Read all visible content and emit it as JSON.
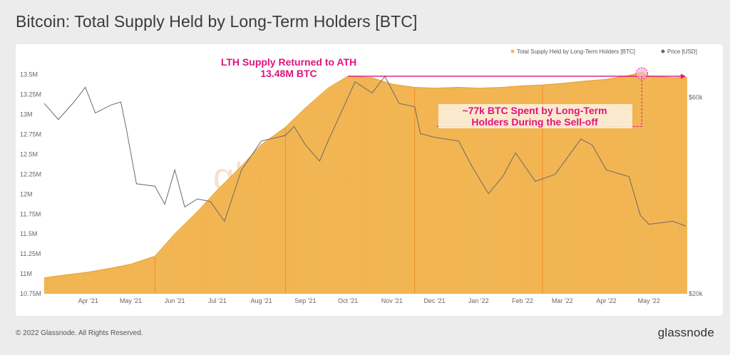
{
  "title": "Bitcoin: Total Supply Held by Long-Term Holders [BTC]",
  "footer": {
    "copyright": "© 2022 Glassnode. All Rights Reserved.",
    "logo": "glassnode"
  },
  "watermark": "glassnode",
  "colors": {
    "supply": "#f4b754",
    "supply_stroke": "#e8a53a",
    "price": "#6a6a6a",
    "annotation": "#e0137d",
    "vline": "#f28c28"
  },
  "chart_data": {
    "type": "area",
    "legend": [
      {
        "label": "Total Supply Held by Long-Term Holders [BTC]",
        "color": "#f4b754"
      },
      {
        "label": "Price [USD]",
        "color": "#6a6a6a"
      }
    ],
    "legend_position": "top-right",
    "x_tick_labels": [
      "Apr '21",
      "May '21",
      "Jun '21",
      "Jul '21",
      "Aug '21",
      "Sep '21",
      "Oct '21",
      "Nov '21",
      "Dec '21",
      "Jan '22",
      "Feb '22",
      "Mar '22",
      "Apr '22",
      "May '22"
    ],
    "x_range": [
      "2021-03-15",
      "2022-06-10"
    ],
    "y_left": {
      "ticks": [
        10750000,
        11000000,
        11250000,
        11500000,
        11750000,
        12000000,
        12250000,
        12500000,
        12750000,
        13000000,
        13250000,
        13500000
      ],
      "tick_labels": [
        "10.75M",
        "11M",
        "11.25M",
        "11.5M",
        "11.75M",
        "12M",
        "12.25M",
        "12.5M",
        "12.75M",
        "13M",
        "13.25M",
        "13.5M"
      ],
      "range": [
        10750000,
        13560000
      ]
    },
    "y_right": {
      "scale": "log",
      "ticks": [
        20000,
        60000
      ],
      "tick_labels": [
        "$20k",
        "$60k"
      ],
      "range": [
        20000,
        70000
      ]
    },
    "series": [
      {
        "name": "Total Supply Held by Long-Term Holders [BTC]",
        "axis": "left",
        "points": [
          [
            "2021-03-15",
            10950000
          ],
          [
            "2021-04-01",
            10990000
          ],
          [
            "2021-04-15",
            11020000
          ],
          [
            "2021-05-01",
            11070000
          ],
          [
            "2021-05-15",
            11120000
          ],
          [
            "2021-06-01",
            11220000
          ],
          [
            "2021-06-15",
            11500000
          ],
          [
            "2021-07-01",
            11780000
          ],
          [
            "2021-07-15",
            12050000
          ],
          [
            "2021-08-01",
            12350000
          ],
          [
            "2021-08-15",
            12620000
          ],
          [
            "2021-09-01",
            12840000
          ],
          [
            "2021-09-15",
            13080000
          ],
          [
            "2021-10-01",
            13330000
          ],
          [
            "2021-10-15",
            13480000
          ],
          [
            "2021-11-01",
            13460000
          ],
          [
            "2021-11-15",
            13380000
          ],
          [
            "2021-12-01",
            13340000
          ],
          [
            "2021-12-15",
            13330000
          ],
          [
            "2022-01-01",
            13340000
          ],
          [
            "2022-01-15",
            13330000
          ],
          [
            "2022-02-01",
            13340000
          ],
          [
            "2022-02-15",
            13360000
          ],
          [
            "2022-03-01",
            13370000
          ],
          [
            "2022-03-15",
            13390000
          ],
          [
            "2022-04-01",
            13420000
          ],
          [
            "2022-04-15",
            13440000
          ],
          [
            "2022-05-01",
            13490000
          ],
          [
            "2022-05-10",
            13530000
          ],
          [
            "2022-05-15",
            13480000
          ],
          [
            "2022-06-01",
            13460000
          ],
          [
            "2022-06-10",
            13470000
          ]
        ]
      },
      {
        "name": "Price [USD]",
        "axis": "right",
        "points": [
          [
            "2021-03-15",
            58000
          ],
          [
            "2021-03-25",
            53000
          ],
          [
            "2021-04-05",
            58500
          ],
          [
            "2021-04-13",
            63500
          ],
          [
            "2021-04-20",
            55000
          ],
          [
            "2021-05-01",
            57500
          ],
          [
            "2021-05-08",
            58500
          ],
          [
            "2021-05-12",
            50000
          ],
          [
            "2021-05-19",
            37000
          ],
          [
            "2021-06-01",
            36500
          ],
          [
            "2021-06-08",
            33000
          ],
          [
            "2021-06-15",
            40000
          ],
          [
            "2021-06-22",
            32500
          ],
          [
            "2021-07-01",
            34000
          ],
          [
            "2021-07-10",
            33500
          ],
          [
            "2021-07-20",
            30000
          ],
          [
            "2021-08-01",
            40000
          ],
          [
            "2021-08-15",
            47000
          ],
          [
            "2021-09-01",
            48500
          ],
          [
            "2021-09-07",
            51000
          ],
          [
            "2021-09-15",
            46000
          ],
          [
            "2021-09-25",
            42000
          ],
          [
            "2021-10-01",
            47000
          ],
          [
            "2021-10-10",
            55000
          ],
          [
            "2021-10-20",
            65500
          ],
          [
            "2021-11-01",
            61500
          ],
          [
            "2021-11-10",
            67500
          ],
          [
            "2021-11-20",
            58000
          ],
          [
            "2021-12-01",
            57000
          ],
          [
            "2021-12-05",
            49000
          ],
          [
            "2021-12-15",
            48000
          ],
          [
            "2022-01-01",
            47000
          ],
          [
            "2022-01-10",
            41000
          ],
          [
            "2022-01-22",
            35000
          ],
          [
            "2022-02-01",
            38500
          ],
          [
            "2022-02-10",
            44000
          ],
          [
            "2022-02-24",
            37500
          ],
          [
            "2022-03-10",
            39000
          ],
          [
            "2022-03-28",
            47500
          ],
          [
            "2022-04-05",
            46000
          ],
          [
            "2022-04-15",
            40000
          ],
          [
            "2022-05-01",
            38500
          ],
          [
            "2022-05-09",
            31000
          ],
          [
            "2022-05-15",
            29500
          ],
          [
            "2022-06-01",
            30000
          ],
          [
            "2022-06-10",
            29200
          ]
        ]
      }
    ],
    "annotations": [
      {
        "text_lines": [
          "LTH Supply Returned to ATH",
          "13.48M BTC"
        ],
        "type": "horizontal-arrow",
        "from": "2021-10-15",
        "to": "2022-06-10",
        "y": 13480000
      },
      {
        "text_lines": [
          "~77k BTC Spent by Long-Term",
          "Holders During the Sell-off"
        ],
        "type": "dashed-bracket",
        "x": "2022-05-10",
        "from_y": 13480000,
        "to_y": 12850000
      }
    ]
  }
}
